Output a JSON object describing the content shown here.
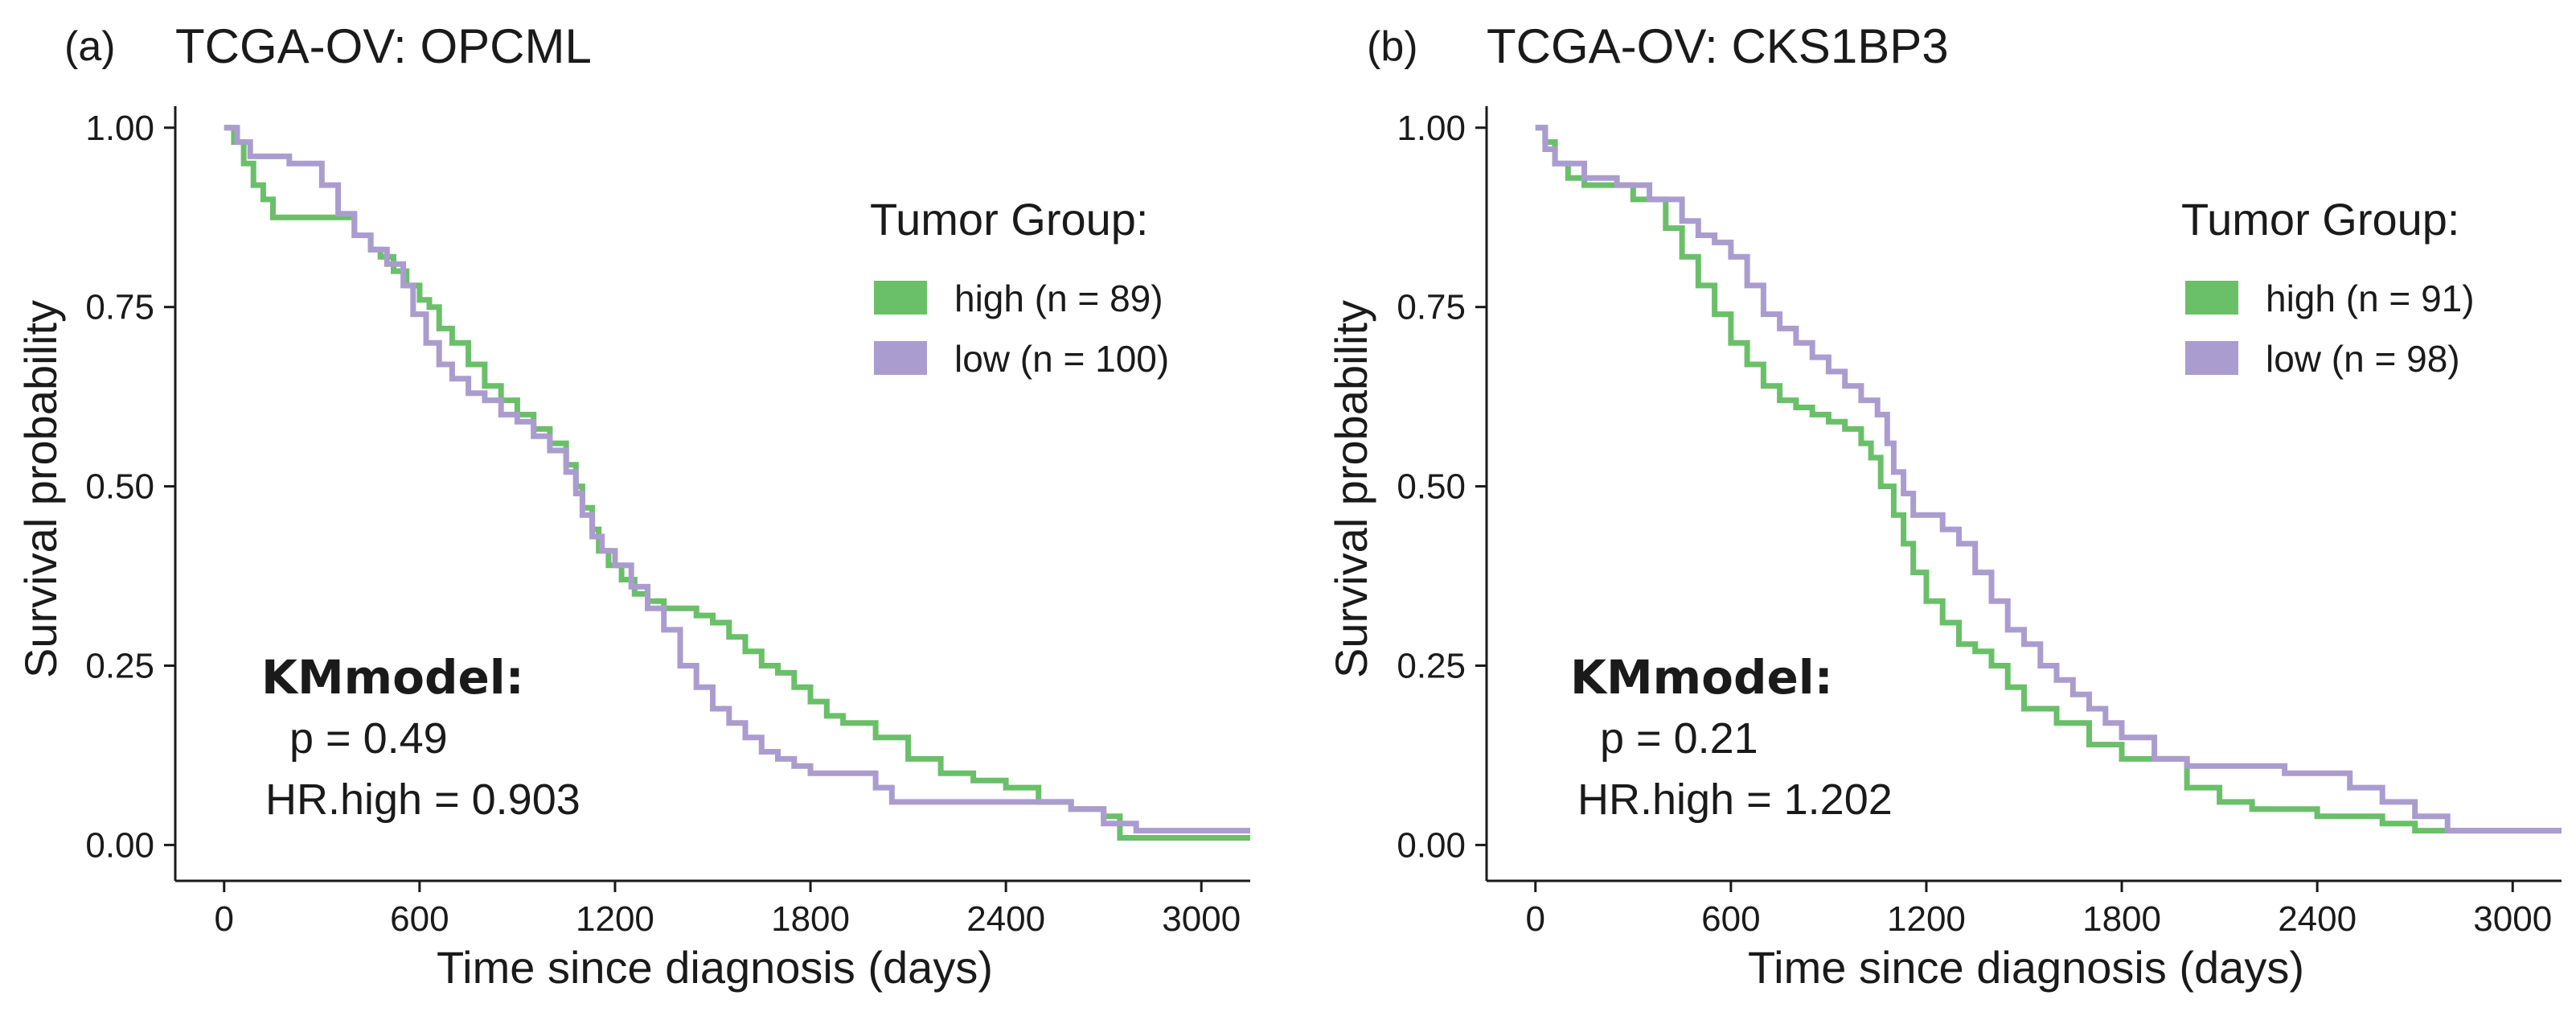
{
  "figure": {
    "panels": [
      {
        "label": "(a)",
        "title": "TCGA-OV: OPCML",
        "legend_title": "Tumor Group:",
        "stats_title": "KMmodel:",
        "p_text": "p = 0.49",
        "hr_text": "HR.high = 0.903"
      },
      {
        "label": "(b)",
        "title": "TCGA-OV: CKS1BP3",
        "legend_title": "Tumor Group:",
        "stats_title": "KMmodel:",
        "p_text": "p = 0.21",
        "hr_text": "HR.high = 1.202"
      }
    ]
  },
  "chart_data": [
    {
      "type": "line",
      "title": "TCGA-OV: OPCML",
      "xlabel": "Time since diagnosis (days)",
      "ylabel": "Survival probability",
      "xlim": [
        -150,
        3150
      ],
      "ylim": [
        -0.05,
        1.03
      ],
      "xticks": [
        0,
        600,
        1200,
        1800,
        2400,
        3000
      ],
      "xtick_labels": [
        "0",
        "600",
        "1200",
        "1800",
        "2400",
        "3000"
      ],
      "yticks": [
        0,
        0.25,
        0.5,
        0.75,
        1.0
      ],
      "ytick_labels": [
        "0.00",
        "0.25",
        "0.50",
        "0.75",
        "1.00"
      ],
      "grid": false,
      "legend_position": "top-right",
      "colors": {
        "high": "#6abf69",
        "low": "#ab9ccf"
      },
      "series": [
        {
          "name": "high (n = 89)",
          "key": "high",
          "x": [
            0,
            30,
            60,
            90,
            120,
            150,
            400,
            450,
            480,
            520,
            560,
            600,
            630,
            660,
            700,
            750,
            800,
            850,
            900,
            950,
            1000,
            1050,
            1080,
            1100,
            1130,
            1150,
            1180,
            1220,
            1260,
            1300,
            1350,
            1400,
            1450,
            1500,
            1550,
            1600,
            1650,
            1700,
            1750,
            1800,
            1850,
            1900,
            1950,
            2000,
            2100,
            2200,
            2300,
            2400,
            2500,
            2600,
            2700,
            2750,
            3150
          ],
          "values": [
            1.0,
            0.98,
            0.95,
            0.92,
            0.9,
            0.875,
            0.85,
            0.83,
            0.82,
            0.8,
            0.78,
            0.76,
            0.75,
            0.72,
            0.7,
            0.67,
            0.64,
            0.62,
            0.6,
            0.58,
            0.56,
            0.53,
            0.5,
            0.47,
            0.44,
            0.41,
            0.39,
            0.37,
            0.35,
            0.34,
            0.33,
            0.33,
            0.32,
            0.31,
            0.29,
            0.27,
            0.25,
            0.24,
            0.22,
            0.2,
            0.18,
            0.17,
            0.17,
            0.15,
            0.12,
            0.1,
            0.09,
            0.08,
            0.06,
            0.05,
            0.04,
            0.01,
            0.01
          ]
        },
        {
          "name": "low (n = 100)",
          "key": "low",
          "x": [
            0,
            40,
            80,
            200,
            300,
            350,
            400,
            450,
            500,
            550,
            580,
            620,
            660,
            700,
            750,
            800,
            850,
            900,
            950,
            1000,
            1050,
            1080,
            1100,
            1130,
            1160,
            1200,
            1250,
            1300,
            1350,
            1400,
            1450,
            1500,
            1550,
            1600,
            1650,
            1700,
            1750,
            1800,
            1900,
            2000,
            2050,
            2200,
            2400,
            2600,
            2700,
            2800,
            3150
          ],
          "values": [
            1.0,
            0.98,
            0.96,
            0.95,
            0.92,
            0.88,
            0.85,
            0.83,
            0.81,
            0.78,
            0.74,
            0.7,
            0.67,
            0.65,
            0.63,
            0.62,
            0.6,
            0.59,
            0.57,
            0.55,
            0.52,
            0.49,
            0.46,
            0.43,
            0.41,
            0.39,
            0.36,
            0.33,
            0.3,
            0.25,
            0.22,
            0.19,
            0.17,
            0.15,
            0.13,
            0.12,
            0.11,
            0.1,
            0.1,
            0.08,
            0.06,
            0.06,
            0.06,
            0.05,
            0.03,
            0.02,
            0.02
          ]
        }
      ]
    },
    {
      "type": "line",
      "title": "TCGA-OV: CKS1BP3",
      "xlabel": "Time since diagnosis (days)",
      "ylabel": "Survival probability",
      "xlim": [
        -150,
        3150
      ],
      "ylim": [
        -0.05,
        1.03
      ],
      "xticks": [
        0,
        600,
        1200,
        1800,
        2400,
        3000
      ],
      "xtick_labels": [
        "0",
        "600",
        "1200",
        "1800",
        "2400",
        "3000"
      ],
      "yticks": [
        0,
        0.25,
        0.5,
        0.75,
        1.0
      ],
      "ytick_labels": [
        "0.00",
        "0.25",
        "0.50",
        "0.75",
        "1.00"
      ],
      "grid": false,
      "legend_position": "top-right",
      "colors": {
        "high": "#6abf69",
        "low": "#ab9ccf"
      },
      "series": [
        {
          "name": "high (n = 91)",
          "key": "high",
          "x": [
            0,
            30,
            60,
            100,
            150,
            300,
            400,
            450,
            500,
            550,
            600,
            650,
            700,
            750,
            800,
            850,
            900,
            950,
            1000,
            1030,
            1060,
            1100,
            1130,
            1160,
            1200,
            1250,
            1300,
            1350,
            1400,
            1450,
            1500,
            1600,
            1700,
            1800,
            1900,
            2000,
            2100,
            2200,
            2400,
            2600,
            2700,
            3150
          ],
          "values": [
            1.0,
            0.98,
            0.95,
            0.93,
            0.92,
            0.9,
            0.86,
            0.82,
            0.78,
            0.74,
            0.7,
            0.67,
            0.64,
            0.62,
            0.61,
            0.6,
            0.59,
            0.58,
            0.56,
            0.54,
            0.5,
            0.46,
            0.42,
            0.38,
            0.34,
            0.31,
            0.28,
            0.27,
            0.25,
            0.22,
            0.19,
            0.17,
            0.14,
            0.12,
            0.12,
            0.08,
            0.06,
            0.05,
            0.04,
            0.03,
            0.02,
            0.02
          ]
        },
        {
          "name": "low (n = 98)",
          "key": "low",
          "x": [
            0,
            30,
            60,
            150,
            250,
            350,
            450,
            500,
            550,
            600,
            650,
            700,
            750,
            800,
            850,
            900,
            950,
            1000,
            1050,
            1080,
            1100,
            1130,
            1160,
            1200,
            1250,
            1300,
            1350,
            1400,
            1450,
            1500,
            1550,
            1600,
            1650,
            1700,
            1750,
            1800,
            1900,
            2000,
            2100,
            2300,
            2500,
            2600,
            2700,
            2800,
            3150
          ],
          "values": [
            1.0,
            0.97,
            0.95,
            0.93,
            0.92,
            0.9,
            0.87,
            0.85,
            0.84,
            0.82,
            0.78,
            0.74,
            0.72,
            0.7,
            0.68,
            0.66,
            0.64,
            0.62,
            0.6,
            0.56,
            0.52,
            0.49,
            0.46,
            0.46,
            0.44,
            0.42,
            0.38,
            0.34,
            0.3,
            0.28,
            0.25,
            0.23,
            0.21,
            0.19,
            0.17,
            0.15,
            0.12,
            0.11,
            0.11,
            0.1,
            0.08,
            0.06,
            0.04,
            0.02,
            0.02
          ]
        }
      ]
    }
  ]
}
